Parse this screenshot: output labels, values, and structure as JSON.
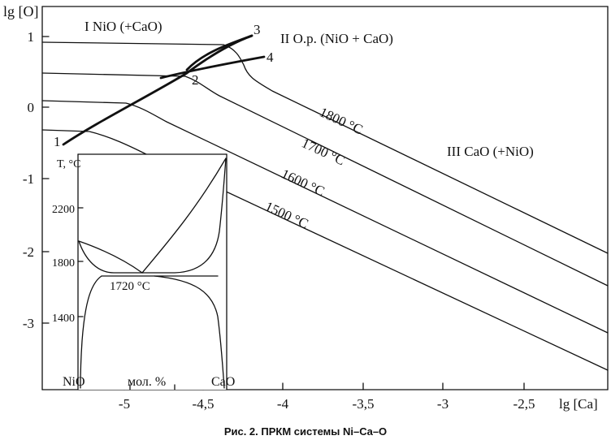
{
  "figure": {
    "caption": "Рис. 2. ПРКМ системы Ni–Ca–O",
    "y_axis": {
      "label": "lg [O]",
      "ticks": [
        "1",
        "0",
        "-1",
        "-2",
        "-3"
      ]
    },
    "x_axis": {
      "label": "lg [Ca]",
      "ticks": [
        "-5",
        "-4,5",
        "-4",
        "-3,5",
        "-3",
        "-2,5"
      ]
    },
    "regions": {
      "r1": "I NiO (+CaO)",
      "r2": "II O.p. (NiO + CaO)",
      "r3": "III CaO (+NiO)"
    },
    "isotherms": [
      "1800 °C",
      "1700 °C",
      "1600 °C",
      "1500 °C"
    ],
    "point_labels": [
      "1",
      "2",
      "3",
      "4"
    ]
  },
  "inset": {
    "y_label": "T, °C",
    "y_ticks": [
      "2200",
      "1800",
      "1400"
    ],
    "x_left": "NiO",
    "x_middle": "мол. %",
    "x_right": "CaO",
    "eutectic": "1720 °C"
  }
}
